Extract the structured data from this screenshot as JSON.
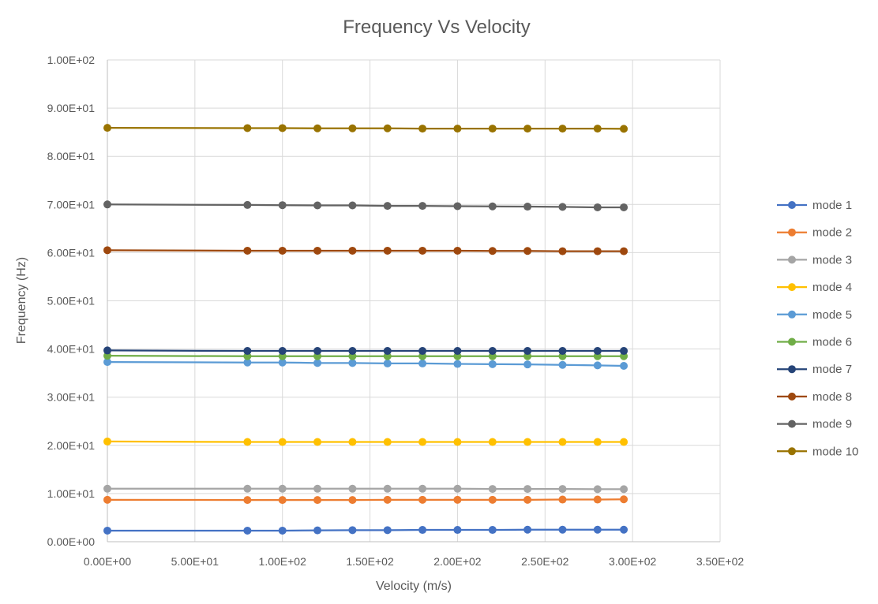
{
  "chart_data": {
    "type": "line",
    "title": "Frequency Vs Velocity",
    "xlabel": "Velocity (m/s)",
    "ylabel": "Frequency (Hz)",
    "xlim": [
      0,
      350
    ],
    "ylim": [
      0,
      100
    ],
    "x_ticks": [
      {
        "value": 0,
        "label": "0.00E+00"
      },
      {
        "value": 50,
        "label": "5.00E+01"
      },
      {
        "value": 100,
        "label": "1.00E+02"
      },
      {
        "value": 150,
        "label": "1.50E+02"
      },
      {
        "value": 200,
        "label": "2.00E+02"
      },
      {
        "value": 250,
        "label": "2.50E+02"
      },
      {
        "value": 300,
        "label": "3.00E+02"
      },
      {
        "value": 350,
        "label": "3.50E+02"
      }
    ],
    "y_ticks": [
      {
        "value": 0,
        "label": "0.00E+00"
      },
      {
        "value": 10,
        "label": "1.00E+01"
      },
      {
        "value": 20,
        "label": "2.00E+01"
      },
      {
        "value": 30,
        "label": "3.00E+01"
      },
      {
        "value": 40,
        "label": "4.00E+01"
      },
      {
        "value": 50,
        "label": "5.00E+01"
      },
      {
        "value": 60,
        "label": "6.00E+01"
      },
      {
        "value": 70,
        "label": "7.00E+01"
      },
      {
        "value": 80,
        "label": "8.00E+01"
      },
      {
        "value": 90,
        "label": "9.00E+01"
      },
      {
        "value": 100,
        "label": "1.00E+02"
      }
    ],
    "grid": true,
    "legend_position": "right",
    "x": [
      0,
      80,
      100,
      120,
      140,
      160,
      180,
      200,
      220,
      240,
      260,
      280,
      295
    ],
    "series": [
      {
        "name": "mode 1",
        "color": "#4472c4",
        "values": [
          2.3,
          2.3,
          2.3,
          2.35,
          2.4,
          2.4,
          2.45,
          2.45,
          2.45,
          2.5,
          2.5,
          2.5,
          2.5
        ]
      },
      {
        "name": "mode 2",
        "color": "#ed7d31",
        "values": [
          8.7,
          8.65,
          8.65,
          8.65,
          8.65,
          8.7,
          8.7,
          8.7,
          8.7,
          8.7,
          8.75,
          8.75,
          8.8
        ]
      },
      {
        "name": "mode 3",
        "color": "#a5a5a5",
        "values": [
          11.0,
          11.0,
          11.0,
          11.0,
          11.0,
          11.0,
          11.0,
          11.0,
          10.95,
          10.95,
          10.95,
          10.9,
          10.9
        ]
      },
      {
        "name": "mode 4",
        "color": "#ffc000",
        "values": [
          20.8,
          20.7,
          20.7,
          20.7,
          20.7,
          20.7,
          20.7,
          20.7,
          20.7,
          20.7,
          20.7,
          20.7,
          20.7
        ]
      },
      {
        "name": "mode 5",
        "color": "#5b9bd5",
        "values": [
          37.3,
          37.2,
          37.2,
          37.1,
          37.1,
          37.0,
          37.0,
          36.9,
          36.85,
          36.8,
          36.7,
          36.6,
          36.5
        ]
      },
      {
        "name": "mode 6",
        "color": "#70ad47",
        "values": [
          38.6,
          38.5,
          38.5,
          38.5,
          38.5,
          38.5,
          38.5,
          38.5,
          38.5,
          38.5,
          38.5,
          38.5,
          38.5
        ]
      },
      {
        "name": "mode 7",
        "color": "#264478",
        "values": [
          39.7,
          39.6,
          39.6,
          39.6,
          39.6,
          39.6,
          39.6,
          39.6,
          39.6,
          39.6,
          39.6,
          39.6,
          39.6
        ]
      },
      {
        "name": "mode 8",
        "color": "#9e480e",
        "values": [
          60.5,
          60.4,
          60.4,
          60.4,
          60.4,
          60.4,
          60.4,
          60.4,
          60.35,
          60.35,
          60.3,
          60.3,
          60.3
        ]
      },
      {
        "name": "mode 9",
        "color": "#636363",
        "values": [
          70.0,
          69.9,
          69.85,
          69.8,
          69.8,
          69.7,
          69.7,
          69.65,
          69.6,
          69.55,
          69.5,
          69.4,
          69.4
        ]
      },
      {
        "name": "mode 10",
        "color": "#997300",
        "values": [
          85.9,
          85.85,
          85.85,
          85.8,
          85.8,
          85.8,
          85.75,
          85.75,
          85.75,
          85.75,
          85.75,
          85.75,
          85.7
        ]
      }
    ]
  }
}
